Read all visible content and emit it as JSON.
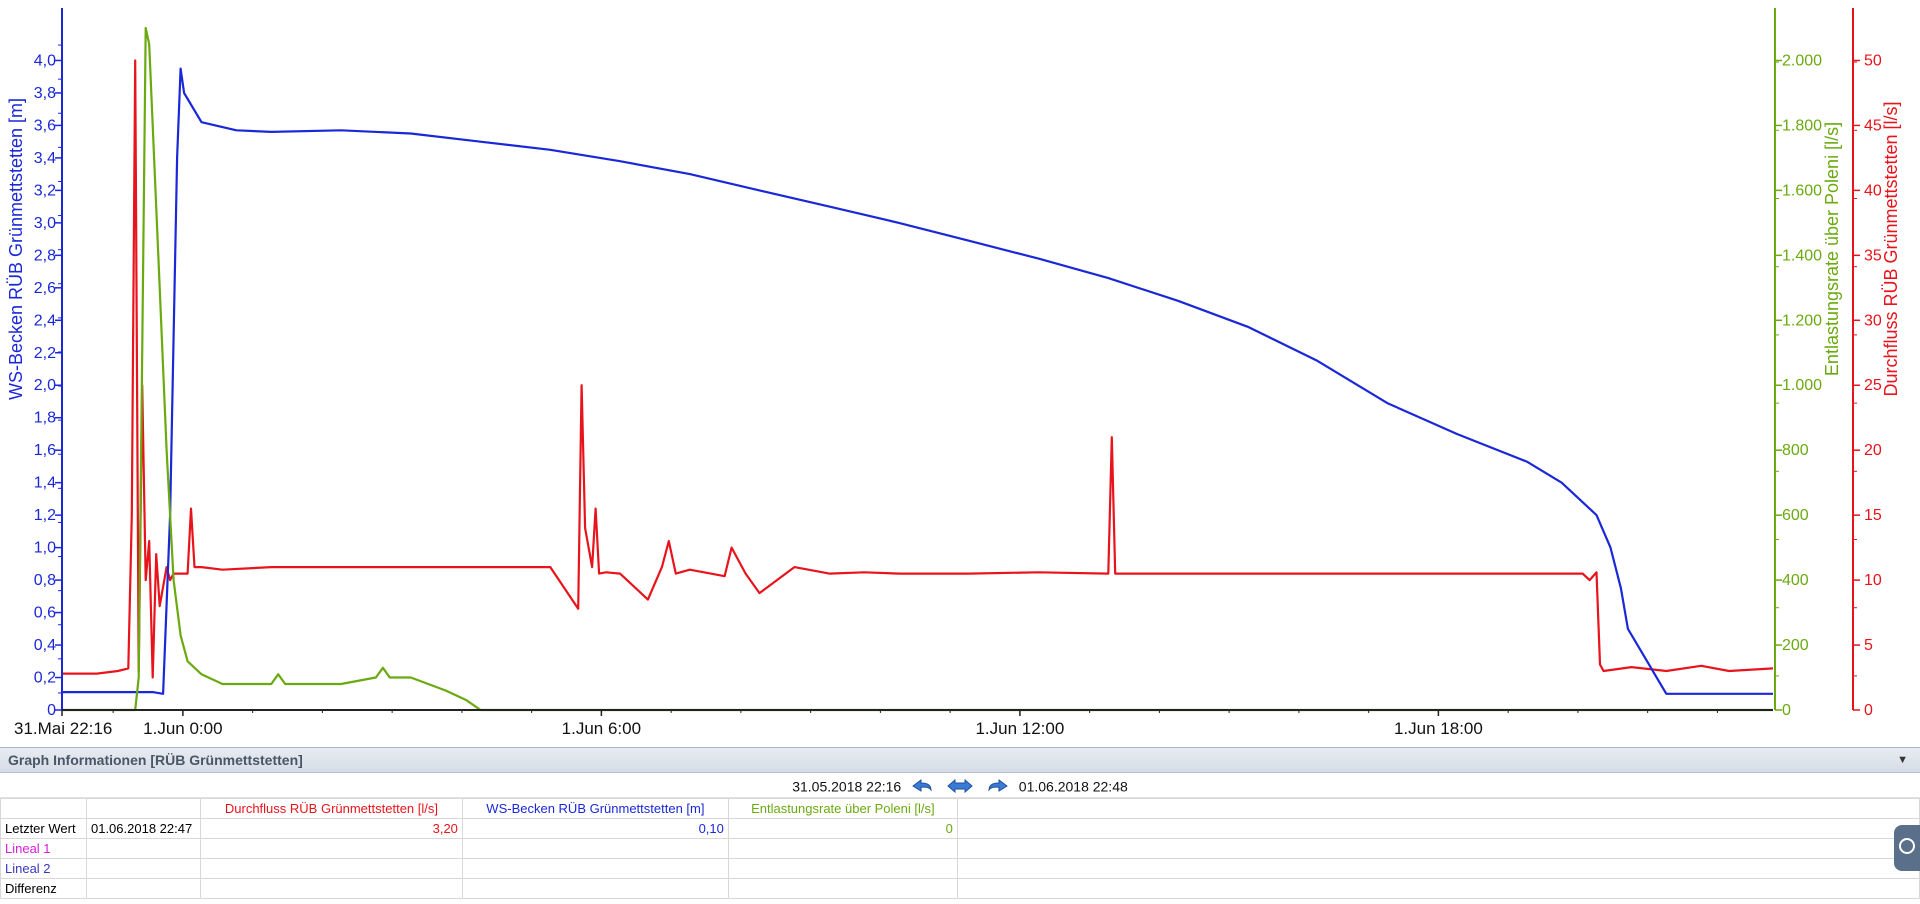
{
  "chart_data": {
    "type": "line",
    "x_range": [
      "31.05.2018 22:16",
      "01.06.2018 22:48"
    ],
    "x_ticks": [
      "31.Mai 22:16",
      "1.Jun 0:00",
      "1.Jun 6:00",
      "1.Jun 12:00",
      "1.Jun 18:00"
    ],
    "axes": {
      "left": {
        "label": "WS-Becken RÜB Grünmettstetten [m]",
        "color": "#1a28d8",
        "ylim": [
          0,
          4.2
        ],
        "ticks": [
          "0",
          "0,2",
          "0,4",
          "0,6",
          "0,8",
          "1,0",
          "1,2",
          "1,4",
          "1,6",
          "1,8",
          "2,0",
          "2,2",
          "2,4",
          "2,6",
          "2,8",
          "3,0",
          "3,2",
          "3,4",
          "3,6",
          "3,8",
          "4,0"
        ]
      },
      "right_green": {
        "label": "Entlastungsrate über Poleni [l/s]",
        "color": "#6aaa10",
        "ylim": [
          0,
          2100
        ],
        "ticks": [
          "0",
          "200",
          "400",
          "600",
          "800",
          "1.000",
          "1.200",
          "1.400",
          "1.600",
          "1.800",
          "2.000"
        ]
      },
      "right_red": {
        "label": "Durchfluss RÜB Grünmettstetten [l/s]",
        "color": "#e8141c",
        "ylim": [
          0,
          52.5
        ],
        "ticks": [
          "0",
          "5",
          "10",
          "15",
          "20",
          "25",
          "30",
          "35",
          "40",
          "45",
          "50"
        ]
      }
    },
    "series": [
      {
        "name": "WS-Becken RÜB Grünmettstetten [m]",
        "axis": "left",
        "color": "#1a28d8",
        "x_hours": [
          0,
          1.0,
          1.3,
          1.45,
          1.55,
          1.65,
          1.7,
          1.75,
          2.0,
          2.5,
          3,
          4,
          5,
          6,
          7,
          8,
          9,
          10,
          11,
          12,
          13,
          14,
          15,
          16,
          17,
          18,
          19,
          20,
          21,
          21.5,
          22,
          22.2,
          22.35,
          22.45,
          23,
          23.5,
          24.53
        ],
        "values": [
          0.11,
          0.11,
          0.11,
          0.1,
          1.2,
          3.4,
          3.95,
          3.8,
          3.62,
          3.57,
          3.56,
          3.57,
          3.55,
          3.5,
          3.45,
          3.38,
          3.3,
          3.2,
          3.1,
          3.0,
          2.89,
          2.78,
          2.66,
          2.52,
          2.36,
          2.15,
          1.89,
          1.7,
          1.53,
          1.4,
          1.2,
          1.0,
          0.75,
          0.5,
          0.1,
          0.1,
          0.1
        ]
      },
      {
        "name": "Entlastungsrate über Poleni [l/s]",
        "axis": "right_green",
        "color": "#6aaa10",
        "x_hours": [
          0,
          1.05,
          1.1,
          1.2,
          1.25,
          1.32,
          1.4,
          1.5,
          1.6,
          1.7,
          1.8,
          2.0,
          2.3,
          2.6,
          3.0,
          3.1,
          3.2,
          3.3,
          3.5,
          4.0,
          4.5,
          4.6,
          4.7,
          5.0,
          5.5,
          5.8,
          6.0,
          24.53
        ],
        "values": [
          0,
          0,
          100,
          2100,
          2050,
          1700,
          1300,
          800,
          400,
          230,
          150,
          110,
          80,
          80,
          80,
          110,
          80,
          80,
          80,
          80,
          100,
          130,
          100,
          100,
          60,
          30,
          0,
          0
        ]
      },
      {
        "name": "Durchfluss RÜB Grünmettstetten [l/s]",
        "axis": "right_red",
        "color": "#e8141c",
        "x_hours": [
          0,
          0.5,
          0.8,
          0.95,
          1.0,
          1.05,
          1.1,
          1.15,
          1.2,
          1.25,
          1.3,
          1.35,
          1.4,
          1.5,
          1.55,
          1.6,
          1.7,
          1.8,
          1.85,
          1.9,
          2.0,
          2.3,
          3,
          5,
          7,
          7.4,
          7.45,
          7.5,
          7.6,
          7.65,
          7.7,
          7.8,
          8.0,
          8.2,
          8.4,
          8.6,
          8.7,
          8.8,
          9.0,
          9.3,
          9.5,
          9.6,
          9.8,
          10.0,
          10.5,
          11.0,
          11.5,
          12.0,
          13.0,
          14.0,
          15.0,
          15.05,
          15.1,
          16.0,
          18.0,
          20.0,
          21.0,
          21.5,
          21.7,
          21.8,
          21.9,
          22.0,
          22.05,
          22.1,
          22.5,
          23.0,
          23.5,
          23.9,
          24.53
        ],
        "values": [
          2.8,
          2.8,
          3.0,
          3.2,
          15,
          50,
          3,
          25,
          10,
          13,
          2.5,
          12,
          8,
          11,
          10,
          10.5,
          10.5,
          10.5,
          15.5,
          11,
          11,
          10.8,
          11,
          11,
          11,
          7.8,
          25,
          14,
          11,
          15.5,
          10.5,
          10.6,
          10.5,
          9.5,
          8.5,
          11,
          13,
          10.5,
          10.8,
          10.5,
          10.3,
          12.5,
          10.5,
          9.0,
          11,
          10.5,
          10.6,
          10.5,
          10.5,
          10.6,
          10.5,
          21,
          10.5,
          10.5,
          10.5,
          10.5,
          10.5,
          10.5,
          10.5,
          10.5,
          10.0,
          10.6,
          3.5,
          3.0,
          3.3,
          3.0,
          3.4,
          3.0,
          3.2
        ]
      }
    ],
    "legend": "none",
    "grid": false
  },
  "info": {
    "title": "Graph Informationen [RÜB Grünmettstetten]",
    "date_from": "31.05.2018 22:16",
    "date_to": "01.06.2018 22:48",
    "columns": [
      "Durchfluss RÜB Grünmettstetten [l/s]",
      "WS-Becken RÜB Grünmettstetten [m]",
      "Entlastungsrate über Poleni [l/s]"
    ],
    "rows": [
      {
        "label": "Letzter Wert",
        "time": "01.06.2018 22:47",
        "values": [
          "3,20",
          "0,10",
          "0"
        ]
      },
      {
        "label": "Lineal 1",
        "time": "",
        "values": [
          "",
          "",
          ""
        ]
      },
      {
        "label": "Lineal 2",
        "time": "",
        "values": [
          "",
          "",
          ""
        ]
      },
      {
        "label": "Differenz",
        "time": "",
        "values": [
          "",
          "",
          ""
        ]
      }
    ]
  }
}
